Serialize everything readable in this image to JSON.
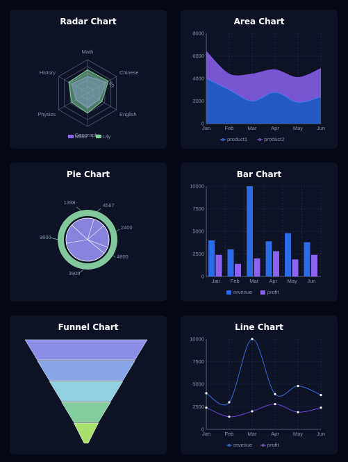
{
  "colors": {
    "bg": "#050814",
    "card": "#0d1325",
    "blue": "#2b6be6",
    "purple": "#8c63ee",
    "green": "#7fcf9a",
    "grid": "#2e3650",
    "text": "#8b93a7"
  },
  "charts": {
    "radar": {
      "title": "Radar Chart"
    },
    "area": {
      "title": "Area Chart"
    },
    "pie": {
      "title": "Pie Chart"
    },
    "bar": {
      "title": "Bar Chart"
    },
    "funnel": {
      "title": "Funnel Chart"
    },
    "line": {
      "title": "Line Chart"
    }
  },
  "chart_data": [
    {
      "type": "radar",
      "title": "Radar Chart",
      "axes": [
        "Math",
        "Chinese",
        "English",
        "Geography",
        "Physics",
        "History"
      ],
      "axis_tick": "80",
      "series": [
        {
          "name": "Mike",
          "values": [
            50,
            65,
            40,
            45,
            40,
            55
          ]
        },
        {
          "name": "Lily",
          "values": [
            70,
            72,
            50,
            60,
            55,
            65
          ]
        }
      ],
      "max": 100,
      "legend": "bottom"
    },
    {
      "type": "area",
      "title": "Area Chart",
      "categories": [
        "Jan",
        "Feb",
        "Mar",
        "Apr",
        "May",
        "Jun"
      ],
      "series": [
        {
          "name": "product1",
          "values": [
            4000,
            3000,
            2000,
            2780,
            1890,
            2390
          ]
        },
        {
          "name": "product2",
          "values": [
            2400,
            1398,
            2400,
            2000,
            2200,
            2500
          ]
        }
      ],
      "stacked": true,
      "ylim": [
        0,
        8000
      ],
      "yticks": [
        "0",
        "2000",
        "4000",
        "6000",
        "8000"
      ],
      "grid": true,
      "legend": "bottom"
    },
    {
      "type": "pie",
      "title": "Pie Chart",
      "inner_values": [
        2400,
        4567,
        1398,
        9800,
        3908,
        4800
      ],
      "outer_labels": [
        "1398",
        "4567",
        "2400",
        "4800",
        "3908",
        "9800"
      ]
    },
    {
      "type": "bar",
      "title": "Bar Chart",
      "categories": [
        "Jan",
        "Feb",
        "Mar",
        "Apr",
        "May",
        "Jun"
      ],
      "series": [
        {
          "name": "revenue",
          "values": [
            4000,
            3000,
            10000,
            3900,
            4800,
            3800
          ]
        },
        {
          "name": "profit",
          "values": [
            2400,
            1400,
            2000,
            2800,
            1900,
            2400
          ]
        }
      ],
      "ylim": [
        0,
        10000
      ],
      "yticks": [
        "0",
        "2500",
        "5000",
        "7500",
        "10000"
      ],
      "grid": true,
      "legend": "bottom"
    },
    {
      "type": "funnel",
      "title": "Funnel Chart",
      "values": [
        100,
        80,
        60,
        40,
        20
      ],
      "colors": [
        "#8c8ee8",
        "#86a6e8",
        "#8fd1e0",
        "#82cc9e",
        "#a9df6b"
      ]
    },
    {
      "type": "line",
      "title": "Line Chart",
      "categories": [
        "Jan",
        "Feb",
        "Mar",
        "Apr",
        "May",
        "Jun"
      ],
      "series": [
        {
          "name": "revenue",
          "values": [
            4000,
            3000,
            10000,
            3900,
            4800,
            3800
          ]
        },
        {
          "name": "profit",
          "values": [
            2400,
            1400,
            2000,
            2800,
            1900,
            2400
          ]
        }
      ],
      "ylim": [
        0,
        10000
      ],
      "yticks": [
        "0",
        "2500",
        "5000",
        "7500",
        "10000"
      ],
      "grid": true,
      "legend": "bottom"
    }
  ]
}
